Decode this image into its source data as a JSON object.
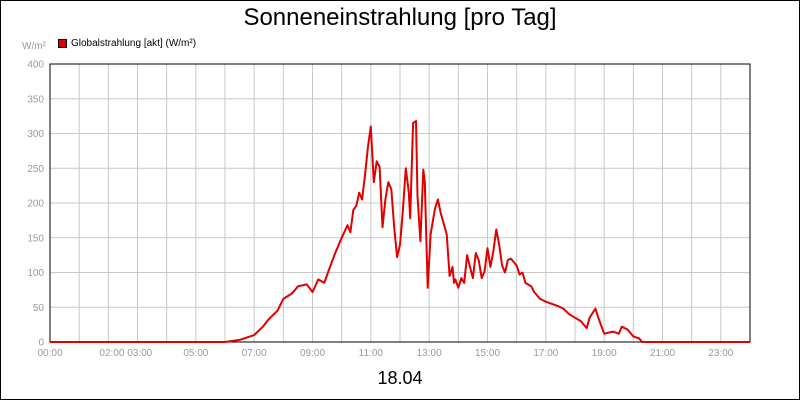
{
  "chart_data": {
    "type": "line",
    "title": "Sonneneinstrahlung [pro Tag]",
    "unit_label": "W/m²",
    "date_label": "18.04",
    "ylim": [
      0,
      400
    ],
    "y_ticks": [
      0,
      50,
      100,
      150,
      200,
      250,
      300,
      350,
      400
    ],
    "xlim": [
      0,
      24
    ],
    "x_tick_labels": [
      {
        "h": 0,
        "label": "00:00"
      },
      {
        "h": 2.6,
        "label": "02:00 03:00"
      },
      {
        "h": 5,
        "label": "05:00"
      },
      {
        "h": 7,
        "label": "07:00"
      },
      {
        "h": 9,
        "label": "09:00"
      },
      {
        "h": 11,
        "label": "11:00"
      },
      {
        "h": 13,
        "label": "13:00"
      },
      {
        "h": 15,
        "label": "15:00"
      },
      {
        "h": 17,
        "label": "17:00"
      },
      {
        "h": 19,
        "label": "19:00"
      },
      {
        "h": 21,
        "label": "21:00"
      },
      {
        "h": 23,
        "label": "23:00"
      }
    ],
    "grid": true,
    "legend_position": "top-left",
    "series": [
      {
        "name": "Globalstrahlung [akt] (W/m²)",
        "color": "#e00000",
        "points": [
          [
            0.0,
            0
          ],
          [
            6.0,
            0
          ],
          [
            6.5,
            3
          ],
          [
            7.0,
            10
          ],
          [
            7.3,
            22
          ],
          [
            7.5,
            33
          ],
          [
            7.8,
            45
          ],
          [
            8.0,
            62
          ],
          [
            8.3,
            70
          ],
          [
            8.5,
            80
          ],
          [
            8.8,
            83
          ],
          [
            9.0,
            72
          ],
          [
            9.2,
            90
          ],
          [
            9.4,
            85
          ],
          [
            9.6,
            108
          ],
          [
            9.8,
            130
          ],
          [
            10.0,
            150
          ],
          [
            10.2,
            168
          ],
          [
            10.3,
            158
          ],
          [
            10.4,
            190
          ],
          [
            10.5,
            196
          ],
          [
            10.6,
            215
          ],
          [
            10.7,
            205
          ],
          [
            10.8,
            240
          ],
          [
            10.9,
            280
          ],
          [
            11.0,
            310
          ],
          [
            11.1,
            230
          ],
          [
            11.2,
            260
          ],
          [
            11.3,
            252
          ],
          [
            11.4,
            165
          ],
          [
            11.5,
            205
          ],
          [
            11.6,
            230
          ],
          [
            11.7,
            220
          ],
          [
            11.8,
            165
          ],
          [
            11.9,
            122
          ],
          [
            12.0,
            140
          ],
          [
            12.1,
            190
          ],
          [
            12.2,
            250
          ],
          [
            12.3,
            215
          ],
          [
            12.35,
            178
          ],
          [
            12.4,
            250
          ],
          [
            12.45,
            315
          ],
          [
            12.55,
            318
          ],
          [
            12.6,
            210
          ],
          [
            12.7,
            145
          ],
          [
            12.8,
            248
          ],
          [
            12.85,
            230
          ],
          [
            12.95,
            78
          ],
          [
            13.05,
            155
          ],
          [
            13.2,
            192
          ],
          [
            13.3,
            205
          ],
          [
            13.4,
            185
          ],
          [
            13.5,
            170
          ],
          [
            13.6,
            155
          ],
          [
            13.7,
            95
          ],
          [
            13.8,
            108
          ],
          [
            13.85,
            85
          ],
          [
            13.9,
            90
          ],
          [
            14.0,
            78
          ],
          [
            14.1,
            92
          ],
          [
            14.2,
            85
          ],
          [
            14.3,
            125
          ],
          [
            14.4,
            108
          ],
          [
            14.5,
            92
          ],
          [
            14.6,
            128
          ],
          [
            14.7,
            118
          ],
          [
            14.8,
            92
          ],
          [
            14.9,
            102
          ],
          [
            15.0,
            135
          ],
          [
            15.1,
            108
          ],
          [
            15.2,
            130
          ],
          [
            15.3,
            162
          ],
          [
            15.4,
            140
          ],
          [
            15.5,
            110
          ],
          [
            15.6,
            100
          ],
          [
            15.7,
            118
          ],
          [
            15.8,
            120
          ],
          [
            15.9,
            115
          ],
          [
            16.0,
            110
          ],
          [
            16.1,
            97
          ],
          [
            16.2,
            100
          ],
          [
            16.3,
            85
          ],
          [
            16.5,
            80
          ],
          [
            16.6,
            72
          ],
          [
            16.8,
            62
          ],
          [
            17.0,
            58
          ],
          [
            17.2,
            55
          ],
          [
            17.4,
            52
          ],
          [
            17.6,
            48
          ],
          [
            17.8,
            40
          ],
          [
            18.0,
            35
          ],
          [
            18.2,
            30
          ],
          [
            18.4,
            20
          ],
          [
            18.5,
            35
          ],
          [
            18.7,
            48
          ],
          [
            18.8,
            35
          ],
          [
            19.0,
            12
          ],
          [
            19.3,
            15
          ],
          [
            19.5,
            12
          ],
          [
            19.6,
            22
          ],
          [
            19.8,
            18
          ],
          [
            20.0,
            8
          ],
          [
            20.2,
            5
          ],
          [
            20.3,
            0
          ],
          [
            24.0,
            0
          ]
        ]
      }
    ]
  }
}
